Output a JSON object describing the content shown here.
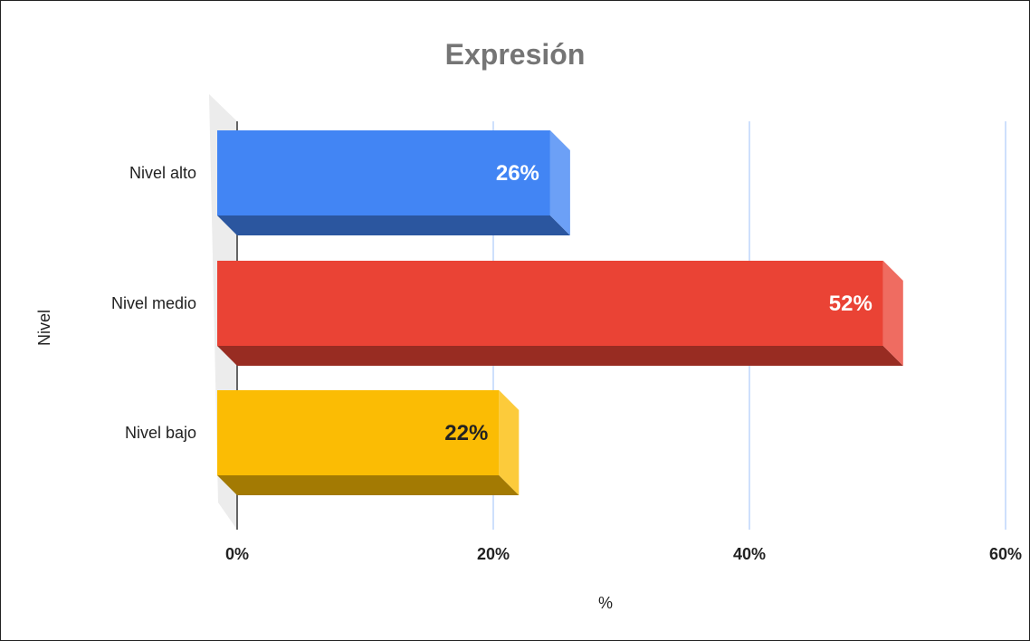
{
  "chart_data": {
    "type": "bar",
    "orientation": "horizontal",
    "title": "Expresión",
    "categories": [
      "Nivel alto",
      "Nivel medio",
      "Nivel bajo"
    ],
    "values": [
      26,
      52,
      22
    ],
    "data_labels": [
      "26%",
      "52%",
      "22%"
    ],
    "xlabel": "%",
    "ylabel": "Nivel",
    "xlim": [
      0,
      60
    ],
    "xticks": [
      0,
      20,
      40,
      60
    ],
    "xtick_labels": [
      "0%",
      "20%",
      "40%",
      "60%"
    ],
    "grid": true,
    "style": "3d",
    "colors": {
      "bars": [
        "#4285f4",
        "#ea4335",
        "#fbbc04"
      ],
      "label_colors": [
        "#ffffff",
        "#ffffff",
        "#222222"
      ],
      "gridline": "#aecbfa"
    }
  }
}
